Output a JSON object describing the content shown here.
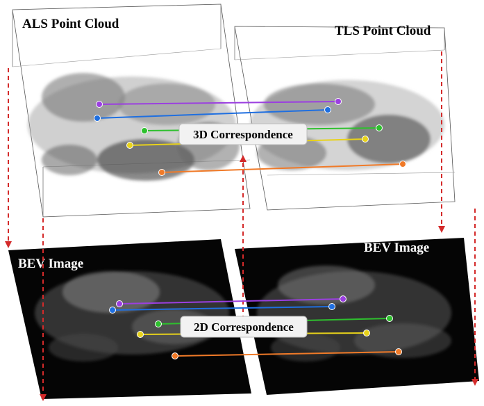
{
  "labels": {
    "als": "ALS Point Cloud",
    "tls": "TLS Point Cloud",
    "bev_left": "BEV Image",
    "bev_right": "BEV Image",
    "corr3d": "3D Correspondence",
    "corr2d": "2D Correspondence"
  },
  "colors": {
    "purple": "#9b3fe0",
    "blue": "#1f6fe0",
    "green": "#2ec02e",
    "yellow": "#e8d21a",
    "orange": "#f07a28",
    "arrow_red": "#d42a2a"
  }
}
